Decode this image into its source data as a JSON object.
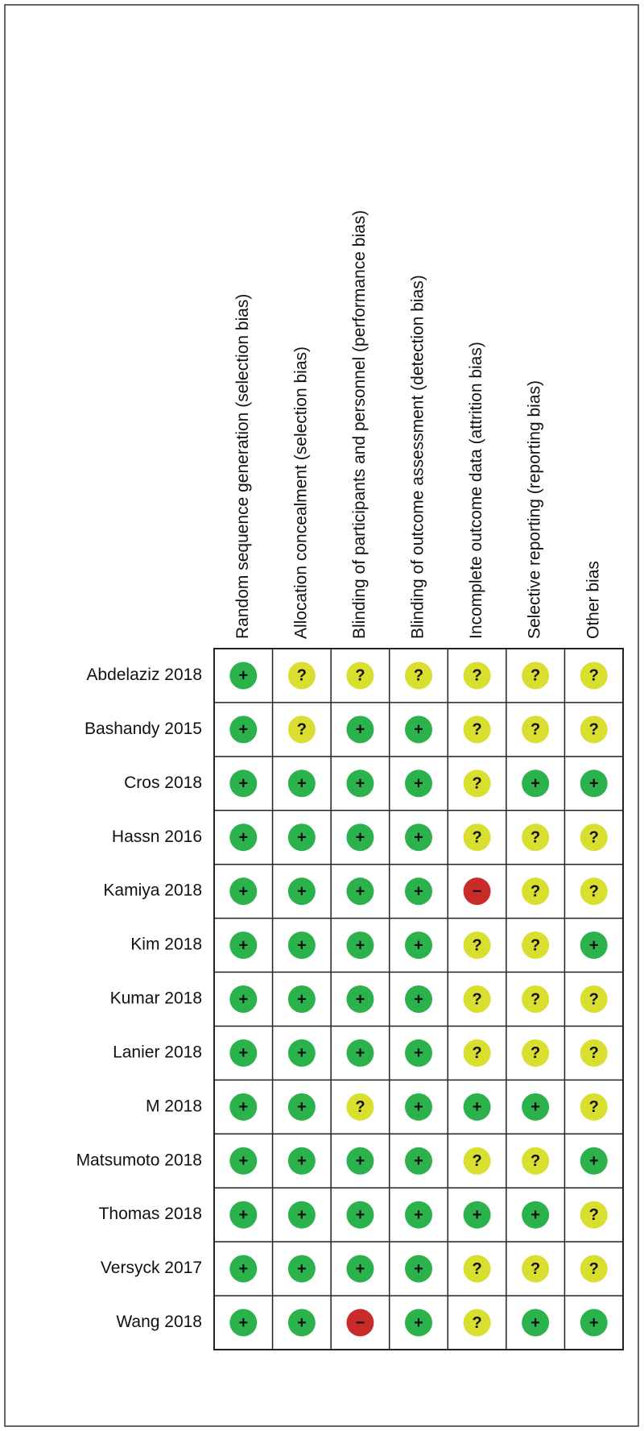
{
  "columns": [
    "Random sequence generation (selection bias)",
    "Allocation concealment (selection bias)",
    "Blinding of participants and personnel (performance bias)",
    "Blinding of outcome assessment (detection bias)",
    "Incomplete outcome data (attrition bias)",
    "Selective reporting (reporting bias)",
    "Other bias"
  ],
  "symbol_colors": {
    "+": "#2bb24c",
    "?": "#d8df2e",
    "−": "#c92a2a"
  },
  "rows": [
    {
      "study": "Abdelaziz 2018",
      "cells": [
        "+",
        "?",
        "?",
        "?",
        "?",
        "?",
        "?"
      ]
    },
    {
      "study": "Bashandy 2015",
      "cells": [
        "+",
        "?",
        "+",
        "+",
        "?",
        "?",
        "?"
      ]
    },
    {
      "study": "Cros 2018",
      "cells": [
        "+",
        "+",
        "+",
        "+",
        "?",
        "+",
        "+"
      ]
    },
    {
      "study": "Hassn 2016",
      "cells": [
        "+",
        "+",
        "+",
        "+",
        "?",
        "?",
        "?"
      ]
    },
    {
      "study": "Kamiya 2018",
      "cells": [
        "+",
        "+",
        "+",
        "+",
        "−",
        "?",
        "?"
      ]
    },
    {
      "study": "Kim 2018",
      "cells": [
        "+",
        "+",
        "+",
        "+",
        "?",
        "?",
        "+"
      ]
    },
    {
      "study": "Kumar 2018",
      "cells": [
        "+",
        "+",
        "+",
        "+",
        "?",
        "?",
        "?"
      ]
    },
    {
      "study": "Lanier 2018",
      "cells": [
        "+",
        "+",
        "+",
        "+",
        "?",
        "?",
        "?"
      ]
    },
    {
      "study": "M 2018",
      "cells": [
        "+",
        "+",
        "?",
        "+",
        "+",
        "+",
        "?"
      ]
    },
    {
      "study": "Matsumoto 2018",
      "cells": [
        "+",
        "+",
        "+",
        "+",
        "?",
        "?",
        "+"
      ]
    },
    {
      "study": "Thomas 2018",
      "cells": [
        "+",
        "+",
        "+",
        "+",
        "+",
        "+",
        "?"
      ]
    },
    {
      "study": "Versyck 2017",
      "cells": [
        "+",
        "+",
        "+",
        "+",
        "?",
        "?",
        "?"
      ]
    },
    {
      "study": "Wang 2018",
      "cells": [
        "+",
        "+",
        "−",
        "+",
        "?",
        "+",
        "+"
      ]
    }
  ]
}
